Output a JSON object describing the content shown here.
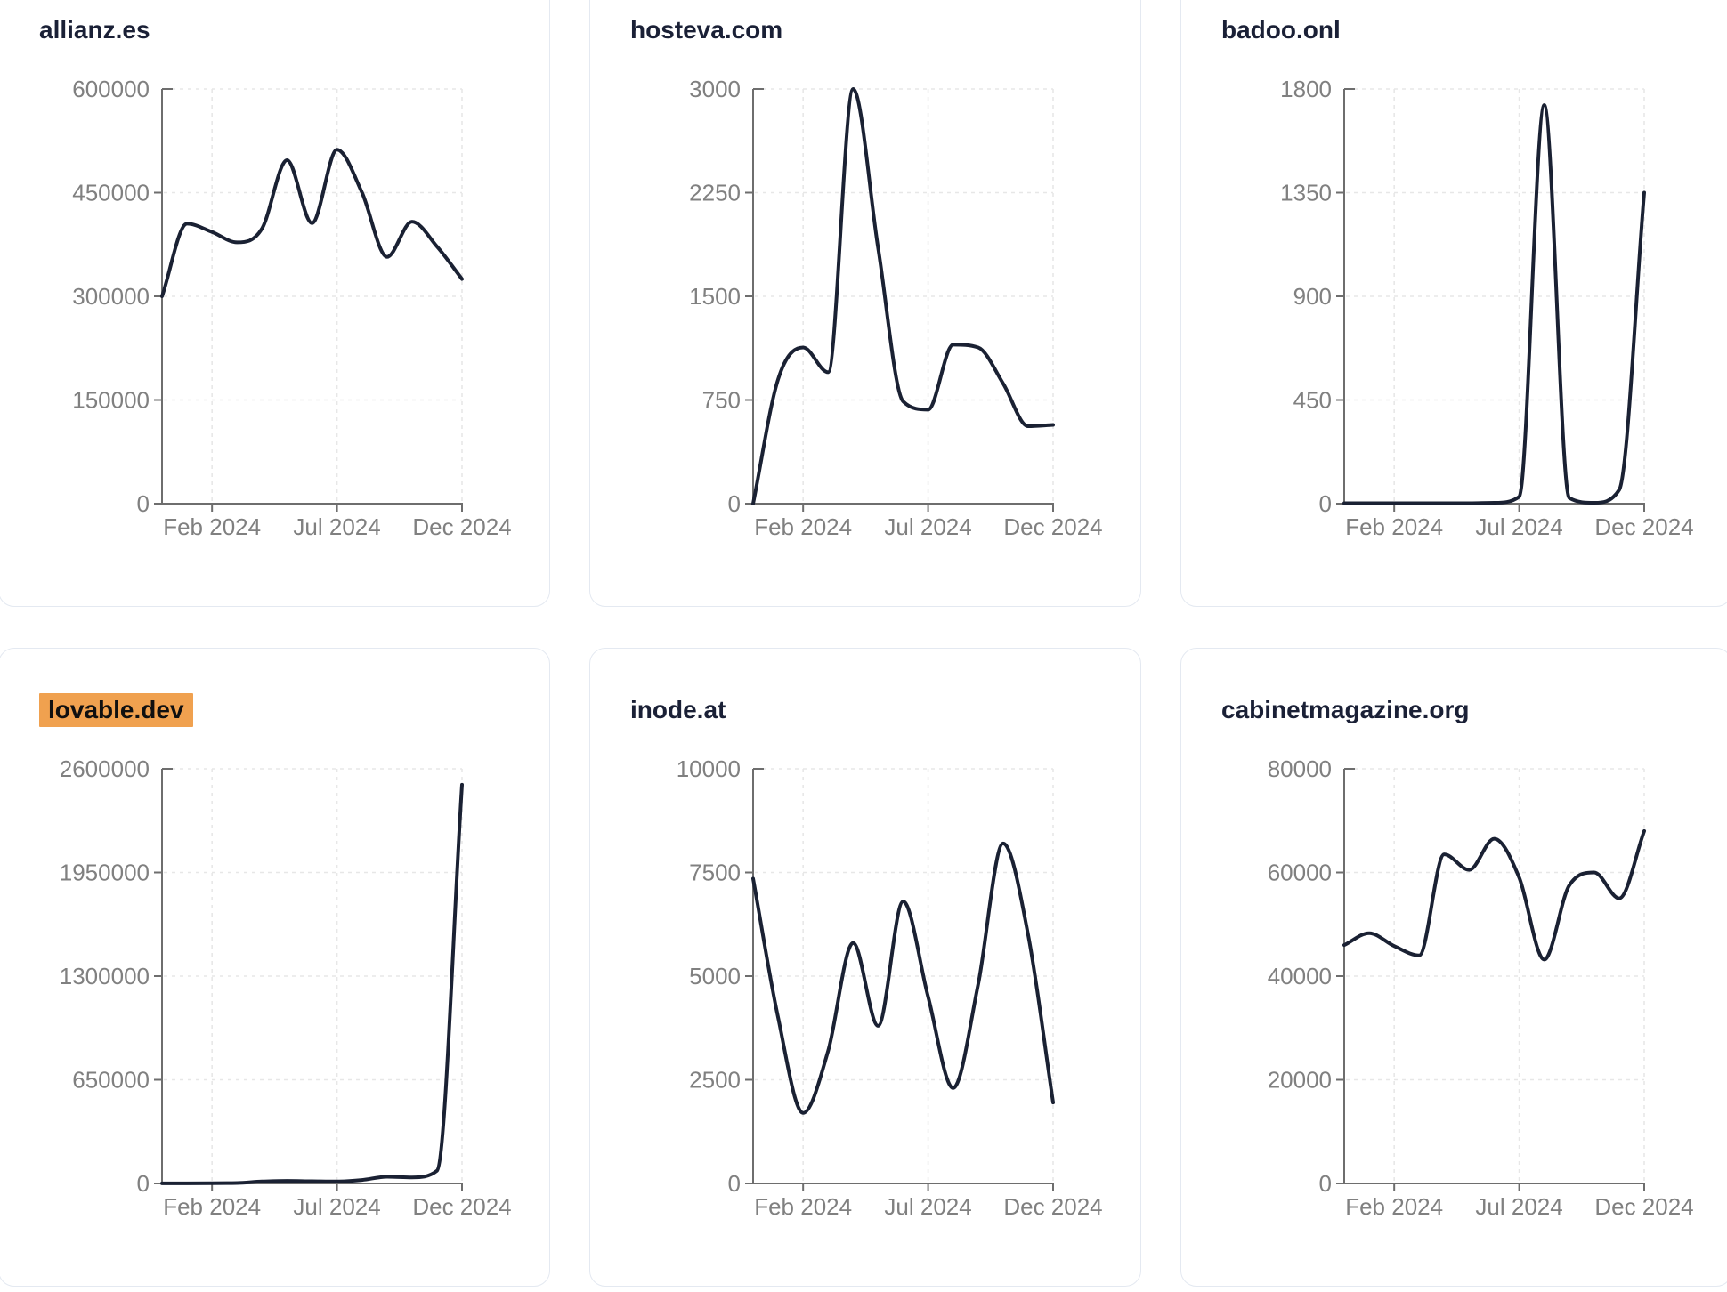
{
  "page": {
    "background": "#ffffff"
  },
  "style": {
    "card_border_color": "#e4e9f1",
    "title_color": "#1a2036",
    "highlight_bg": "#f0a14f",
    "highlight_text": "#101010",
    "line_color": "#1a2133",
    "axis_color": "#6e6e6e",
    "tick_label_color": "#808080",
    "grid_color": "#e7e7e7"
  },
  "chart_data": [
    {
      "type": "line",
      "title": "allianz.es",
      "highlighted": false,
      "months": [
        "Dec 2023",
        "Jan 2024",
        "Feb 2024",
        "Mar 2024",
        "Apr 2024",
        "May 2024",
        "Jun 2024",
        "Jul 2024",
        "Aug 2024",
        "Sep 2024",
        "Oct 2024",
        "Nov 2024",
        "Dec 2024"
      ],
      "values": [
        300000,
        405000,
        393000,
        378000,
        398000,
        497000,
        406000,
        512000,
        450000,
        357000,
        408000,
        372000,
        325000
      ],
      "ylim": [
        0,
        600000
      ],
      "y_ticks": [
        0,
        150000,
        300000,
        450000,
        600000
      ],
      "x_tick_labels": [
        "Feb 2024",
        "Jul 2024",
        "Dec 2024"
      ],
      "x_tick_indices": [
        2,
        7,
        12
      ],
      "grid": true,
      "legend": "none"
    },
    {
      "type": "line",
      "title": "hosteva.com",
      "highlighted": false,
      "months": [
        "Dec 2023",
        "Jan 2024",
        "Feb 2024",
        "Mar 2024",
        "Apr 2024",
        "May 2024",
        "Jun 2024",
        "Jul 2024",
        "Aug 2024",
        "Sep 2024",
        "Oct 2024",
        "Nov 2024",
        "Dec 2024"
      ],
      "values": [
        0,
        900,
        1130,
        950,
        3000,
        1850,
        740,
        680,
        1150,
        1130,
        870,
        560,
        570
      ],
      "ylim": [
        0,
        3000
      ],
      "y_ticks": [
        0,
        750,
        1500,
        2250,
        3000
      ],
      "x_tick_labels": [
        "Feb 2024",
        "Jul 2024",
        "Dec 2024"
      ],
      "x_tick_indices": [
        2,
        7,
        12
      ],
      "grid": true,
      "legend": "none"
    },
    {
      "type": "line",
      "title": "badoo.onl",
      "highlighted": false,
      "months": [
        "Dec 2023",
        "Jan 2024",
        "Feb 2024",
        "Mar 2024",
        "Apr 2024",
        "May 2024",
        "Jun 2024",
        "Jul 2024",
        "Aug 2024",
        "Sep 2024",
        "Oct 2024",
        "Nov 2024",
        "Dec 2024"
      ],
      "values": [
        2,
        2,
        2,
        2,
        2,
        2,
        4,
        30,
        1730,
        25,
        4,
        60,
        1350
      ],
      "ylim": [
        0,
        1800
      ],
      "y_ticks": [
        0,
        450,
        900,
        1350,
        1800
      ],
      "x_tick_labels": [
        "Feb 2024",
        "Jul 2024",
        "Dec 2024"
      ],
      "x_tick_indices": [
        2,
        7,
        12
      ],
      "grid": true,
      "legend": "none"
    },
    {
      "type": "line",
      "title": "lovable.dev",
      "highlighted": true,
      "months": [
        "Dec 2023",
        "Jan 2024",
        "Feb 2024",
        "Mar 2024",
        "Apr 2024",
        "May 2024",
        "Jun 2024",
        "Jul 2024",
        "Aug 2024",
        "Sep 2024",
        "Oct 2024",
        "Nov 2024",
        "Dec 2024"
      ],
      "values": [
        500,
        800,
        1500,
        3000,
        12000,
        16000,
        14000,
        12000,
        22000,
        42000,
        38000,
        80000,
        2500000
      ],
      "ylim": [
        0,
        2600000
      ],
      "y_ticks": [
        0,
        650000,
        1300000,
        1950000,
        2600000
      ],
      "x_tick_labels": [
        "Feb 2024",
        "Jul 2024",
        "Dec 2024"
      ],
      "x_tick_indices": [
        2,
        7,
        12
      ],
      "grid": true,
      "legend": "none"
    },
    {
      "type": "line",
      "title": "inode.at",
      "highlighted": false,
      "months": [
        "Dec 2023",
        "Jan 2024",
        "Feb 2024",
        "Mar 2024",
        "Apr 2024",
        "May 2024",
        "Jun 2024",
        "Jul 2024",
        "Aug 2024",
        "Sep 2024",
        "Oct 2024",
        "Nov 2024",
        "Dec 2024"
      ],
      "values": [
        7350,
        4000,
        1700,
        3200,
        5800,
        3800,
        6800,
        4500,
        2300,
        4800,
        8200,
        6000,
        1950
      ],
      "ylim": [
        0,
        10000
      ],
      "y_ticks": [
        0,
        2500,
        5000,
        7500,
        10000
      ],
      "x_tick_labels": [
        "Feb 2024",
        "Jul 2024",
        "Dec 2024"
      ],
      "x_tick_indices": [
        2,
        7,
        12
      ],
      "grid": true,
      "legend": "none"
    },
    {
      "type": "line",
      "title": "cabinetmagazine.org",
      "highlighted": false,
      "months": [
        "Dec 2023",
        "Jan 2024",
        "Feb 2024",
        "Mar 2024",
        "Apr 2024",
        "May 2024",
        "Jun 2024",
        "Jul 2024",
        "Aug 2024",
        "Sep 2024",
        "Oct 2024",
        "Nov 2024",
        "Dec 2024"
      ],
      "values": [
        46000,
        48300,
        45800,
        44000,
        63500,
        60500,
        66500,
        59000,
        43200,
        57500,
        60000,
        55000,
        68000
      ],
      "ylim": [
        0,
        80000
      ],
      "y_ticks": [
        0,
        20000,
        40000,
        60000,
        80000
      ],
      "x_tick_labels": [
        "Feb 2024",
        "Jul 2024",
        "Dec 2024"
      ],
      "x_tick_indices": [
        2,
        7,
        12
      ],
      "grid": true,
      "legend": "none"
    }
  ]
}
